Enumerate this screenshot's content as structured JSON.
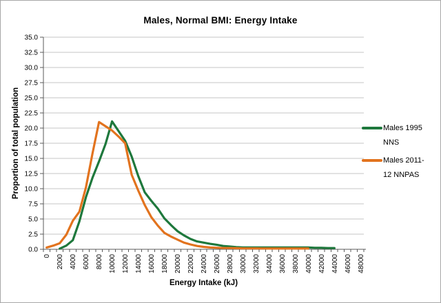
{
  "chart_data": {
    "type": "line",
    "title": "Males, Normal BMI: Energy Intake",
    "xlabel": "Energy Intake (kJ)",
    "ylabel": "Proportion of total population",
    "ylim": [
      0,
      35
    ],
    "y_tick_step": 2.5,
    "y_tick_labels": [
      "0.0",
      "2.5",
      "5.0",
      "7.5",
      "10.0",
      "12.5",
      "15.0",
      "17.5",
      "20.0",
      "22.5",
      "25.0",
      "27.5",
      "30.0",
      "32.5",
      "35.0"
    ],
    "x": [
      0,
      1000,
      2000,
      3000,
      4000,
      5000,
      6000,
      7000,
      8000,
      9000,
      10000,
      11000,
      12000,
      13000,
      14000,
      15000,
      16000,
      17000,
      18000,
      19000,
      20000,
      21000,
      22000,
      23000,
      24000,
      25000,
      26000,
      27000,
      28000,
      29000,
      30000,
      31000,
      32000,
      33000,
      34000,
      35000,
      36000,
      37000,
      38000,
      39000,
      40000,
      41000,
      42000,
      43000,
      44000,
      45000,
      46000,
      47000,
      48000
    ],
    "x_tick_labels": [
      "0",
      "2000",
      "4000",
      "6000",
      "8000",
      "10000",
      "12000",
      "14000",
      "16000",
      "18000",
      "20000",
      "22000",
      "24000",
      "26000",
      "28000",
      "30000",
      "32000",
      "34000",
      "36000",
      "38000",
      "40000",
      "42000",
      "44000",
      "46000",
      "48000"
    ],
    "grid": "horizontal-major",
    "legend_position": "right",
    "series": [
      {
        "name": "Males 1995 NNS",
        "legend_lines": [
          "Males 1995",
          "NNS"
        ],
        "color": "#1e783c",
        "values": [
          null,
          null,
          0.1,
          0.6,
          1.5,
          4.6,
          8.6,
          11.8,
          14.5,
          17.4,
          21.1,
          19.5,
          17.9,
          15.3,
          12.1,
          9.4,
          8.0,
          6.7,
          5.1,
          4.0,
          3.0,
          2.3,
          1.7,
          1.3,
          1.1,
          0.9,
          0.75,
          0.55,
          0.45,
          0.35,
          0.3,
          0.3,
          0.3,
          0.3,
          0.3,
          0.3,
          0.3,
          0.3,
          0.3,
          0.3,
          0.3,
          0.25,
          0.25,
          0.2,
          0.2,
          null,
          null,
          null,
          null
        ]
      },
      {
        "name": "Males 2011-12 NNPAS",
        "legend_lines": [
          "Males 2011-",
          "12 NNPAS"
        ],
        "color": "#e2731e",
        "values": [
          0.3,
          0.6,
          1.0,
          2.4,
          4.7,
          6.2,
          10.2,
          15.8,
          21.0,
          20.3,
          19.6,
          18.6,
          17.5,
          12.3,
          9.7,
          7.3,
          5.3,
          3.9,
          2.7,
          2.1,
          1.6,
          1.1,
          0.8,
          0.55,
          0.4,
          0.3,
          0.25,
          0.2,
          0.2,
          0.18,
          0.15,
          0.15,
          0.15,
          0.14,
          0.13,
          0.13,
          0.12,
          0.12,
          0.12,
          0.12,
          0.12,
          null,
          null,
          null,
          null,
          null,
          null,
          null,
          null
        ]
      }
    ]
  },
  "colors": {
    "gridline": "#c6c6c6",
    "axis": "#595959",
    "tick": "#595959",
    "text": "#000000",
    "background": "#ffffff",
    "border": "#a6a6a6"
  }
}
